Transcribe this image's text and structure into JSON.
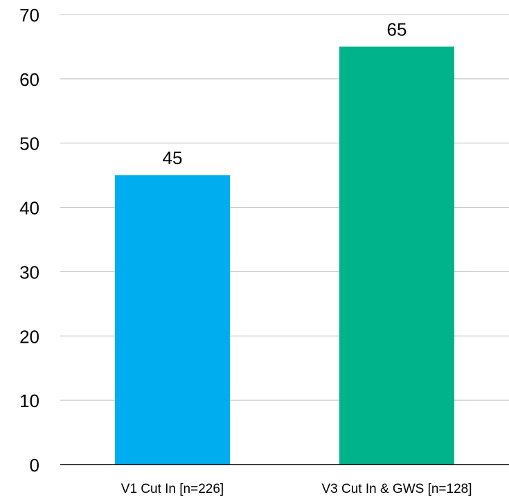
{
  "chart_data": {
    "type": "bar",
    "title": "",
    "xlabel": "",
    "ylabel": "",
    "categories": [
      "V1 Cut In [n=226]",
      "V3 Cut In & GWS [n=128]"
    ],
    "values": [
      45,
      65
    ],
    "data_labels": [
      "45",
      "65"
    ],
    "colors": [
      "#00AEEF",
      "#00B38A"
    ],
    "ylim": [
      0,
      70
    ],
    "yticks": [
      0,
      10,
      20,
      30,
      40,
      50,
      60,
      70
    ],
    "ytick_labels": [
      "0",
      "10",
      "20",
      "30",
      "40",
      "50",
      "60",
      "70"
    ],
    "grid": true,
    "legend": "none"
  }
}
